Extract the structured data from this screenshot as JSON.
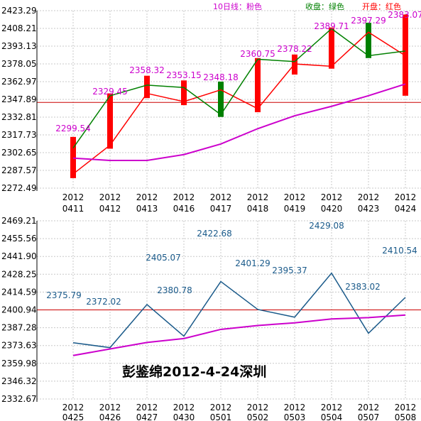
{
  "colors": {
    "ma": "#cc00cc",
    "close": "#008000",
    "open": "#ff0000",
    "series_line": "#1a5a8a",
    "ref": "#cc0000",
    "grid": "#c8c8c8",
    "label_top": "#cc00cc",
    "label_bottom": "#1a5a8a"
  },
  "legend": {
    "ma": "10日线：粉色",
    "close": "收盘：绿色",
    "open": "开盘：红色"
  },
  "watermark": "彭鉴绵2012-4-24深圳",
  "chart_data": [
    {
      "type": "candlestick",
      "categories": [
        "2012 0411",
        "2012 0412",
        "2012 0413",
        "2012 0416",
        "2012 0417",
        "2012 0418",
        "2012 0419",
        "2012 0420",
        "2012 0423",
        "2012 0424"
      ],
      "yticks": [
        "2423.29",
        "2408.21",
        "2393.13",
        "2378.05",
        "2362.97",
        "2347.89",
        "2332.81",
        "2317.73",
        "2302.65",
        "2287.57",
        "2272.49"
      ],
      "ylim": [
        2272.49,
        2423.29
      ],
      "reference_line": 2345.3,
      "series": [
        {
          "name": "开盘",
          "values": [
            2284.5,
            2309,
            2353,
            2346,
            2356,
            2340,
            2378,
            2376,
            2405,
            2385
          ]
        },
        {
          "name": "收盘",
          "values": [
            2306.5,
            2351,
            2360,
            2358,
            2335,
            2382,
            2380,
            2408,
            2385,
            2389
          ]
        },
        {
          "name": "10日线",
          "values": [
            2298,
            2296,
            2296,
            2301,
            2310,
            2323,
            2334,
            2342,
            2351,
            2361
          ]
        }
      ],
      "candles": [
        {
          "low": 2281,
          "high": 2316,
          "color": "red"
        },
        {
          "low": 2306,
          "high": 2353,
          "color": "red"
        },
        {
          "low": 2349,
          "high": 2368,
          "color": "red"
        },
        {
          "low": 2343,
          "high": 2364,
          "color": "red"
        },
        {
          "low": 2333,
          "high": 2363,
          "color": "green"
        },
        {
          "low": 2337,
          "high": 2383,
          "color": "red"
        },
        {
          "low": 2369,
          "high": 2386,
          "color": "red"
        },
        {
          "low": 2374,
          "high": 2409,
          "color": "red"
        },
        {
          "low": 2383,
          "high": 2413,
          "color": "green"
        },
        {
          "low": 2351,
          "high": 2420,
          "color": "red"
        }
      ],
      "labels": [
        "2299.54",
        "2329.45",
        "2358.32",
        "2353.15",
        "2348.18",
        "2360.75",
        "2378.22",
        "2389.71",
        "2397.29",
        "2383.07"
      ]
    },
    {
      "type": "line",
      "categories": [
        "2012 0425",
        "2012 0426",
        "2012 0427",
        "2012 0430",
        "2012 0501",
        "2012 0502",
        "2012 0503",
        "2012 0504",
        "2012 0507",
        "2012 0508"
      ],
      "yticks": [
        "2469.21",
        "2455.56",
        "2441.90",
        "2428.25",
        "2414.59",
        "2400.94",
        "2387.28",
        "2373.63",
        "2359.98",
        "2346.32",
        "2332.67"
      ],
      "ylim": [
        2332.67,
        2469.21
      ],
      "reference_line": 2400.94,
      "series": [
        {
          "values": [
            2375.79,
            2372.02,
            2405.07,
            2380.78,
            2422.68,
            2401.29,
            2395.37,
            2429.08,
            2383.02,
            2410.54
          ]
        },
        {
          "values": [
            2366,
            2371,
            2376,
            2379,
            2386,
            2389,
            2391,
            2394,
            2395,
            2397
          ]
        }
      ],
      "labels": [
        "2375.79",
        "2372.02",
        "2405.07",
        "2380.78",
        "2422.68",
        "2401.29",
        "2395.37",
        "2429.08",
        "2383.02",
        "2410.54"
      ]
    }
  ]
}
